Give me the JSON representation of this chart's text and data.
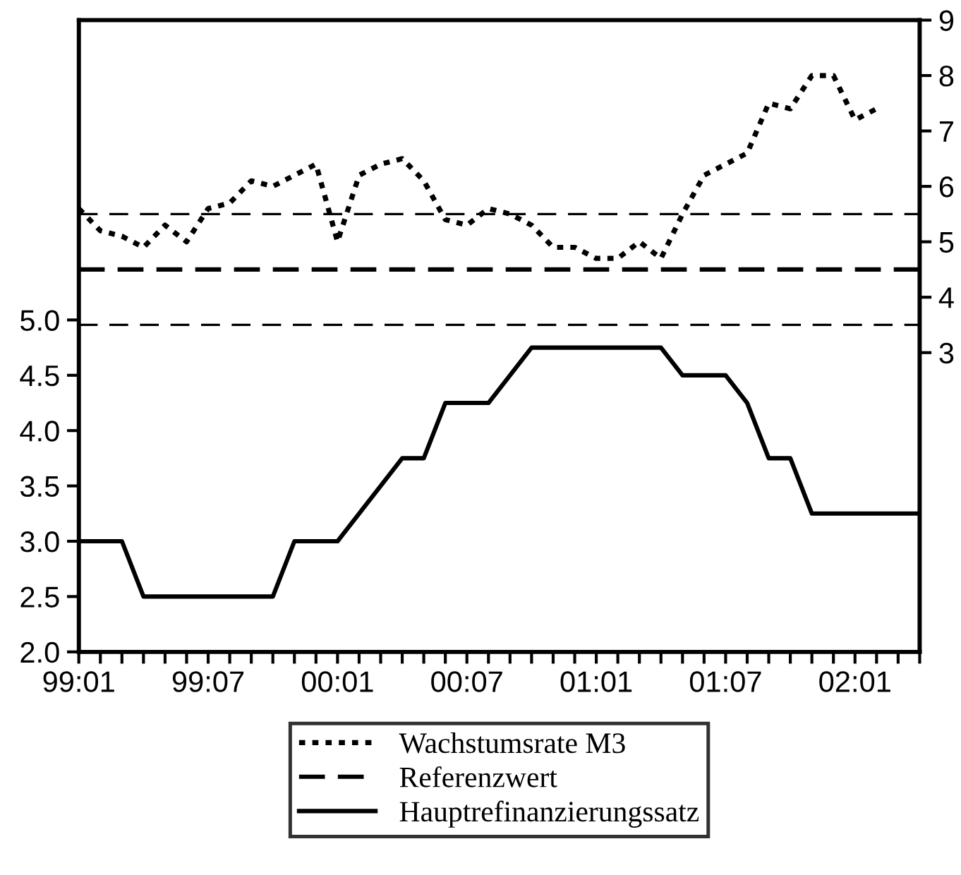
{
  "chart_data": {
    "type": "line",
    "categories": [
      "99:01",
      null,
      null,
      null,
      null,
      null,
      "99:07",
      null,
      null,
      null,
      null,
      null,
      "00:01",
      null,
      null,
      null,
      null,
      null,
      "00:07",
      null,
      null,
      null,
      null,
      null,
      "01:01",
      null,
      null,
      null,
      null,
      null,
      "01:07",
      null,
      null,
      null,
      null,
      null,
      "02:01",
      null,
      null,
      null
    ],
    "series": [
      {
        "name": "Wachstumsrate M3",
        "color": "#000000",
        "axis": "y2",
        "line_style": "dotted",
        "values": [
          5.6,
          5.2,
          5.1,
          4.9,
          5.3,
          5.0,
          5.6,
          5.7,
          6.1,
          6.0,
          6.2,
          6.4,
          5.0,
          6.2,
          6.4,
          6.5,
          6.1,
          5.4,
          5.3,
          5.6,
          5.5,
          5.3,
          4.9,
          4.9,
          4.7,
          4.7,
          5.0,
          4.7,
          5.5,
          6.2,
          6.4,
          6.6,
          7.5,
          7.4,
          8.0,
          8.0,
          7.2,
          7.4,
          null,
          null
        ]
      },
      {
        "name": "Referenzwert",
        "color": "#000000",
        "axis": "y2",
        "line_style": "dashed",
        "values": [
          4.5,
          4.5,
          4.5,
          4.5,
          4.5,
          4.5,
          4.5,
          4.5,
          4.5,
          4.5,
          4.5,
          4.5,
          4.5,
          4.5,
          4.5,
          4.5,
          4.5,
          4.5,
          4.5,
          4.5,
          4.5,
          4.5,
          4.5,
          4.5,
          4.5,
          4.5,
          4.5,
          4.5,
          4.5,
          4.5,
          4.5,
          4.5,
          4.5,
          4.5,
          4.5,
          4.5,
          4.5,
          4.5,
          4.5,
          4.5
        ]
      },
      {
        "name": "Hauptrefinanzierungssatz",
        "color": "#000000",
        "line_style": "solid",
        "values": [
          3.0,
          3.0,
          3.0,
          2.5,
          2.5,
          2.5,
          2.5,
          2.5,
          2.5,
          2.5,
          3.0,
          3.0,
          3.0,
          3.25,
          3.5,
          3.75,
          3.75,
          4.25,
          4.25,
          4.25,
          4.5,
          4.75,
          4.75,
          4.75,
          4.75,
          4.75,
          4.75,
          4.75,
          4.5,
          4.5,
          4.5,
          4.25,
          3.75,
          3.75,
          3.25,
          3.25,
          3.25,
          3.25,
          3.25,
          3.25
        ]
      }
    ],
    "ref_lines": [
      {
        "axis": "y2",
        "value": 5.5,
        "color": "#000000",
        "line_style": "dashed"
      },
      {
        "axis": "y2",
        "value": 3.5,
        "color": "#000000",
        "line_style": "dashed"
      }
    ],
    "ylim": [
      2.0,
      7.71
    ],
    "yticks": [
      {
        "value": 2.0,
        "label": "2.0"
      },
      {
        "value": 2.5,
        "label": "2.5"
      },
      {
        "value": 3.0,
        "label": "3.0"
      },
      {
        "value": 3.5,
        "label": "3.5"
      },
      {
        "value": 4.0,
        "label": "4.0"
      },
      {
        "value": 4.5,
        "label": "4.5"
      },
      {
        "value": 5.0,
        "label": "5.0"
      }
    ],
    "y2lim": [
      -2.4,
      9
    ],
    "y2ticks": [
      3,
      4,
      5,
      6,
      7,
      8,
      9
    ],
    "legend": "bottom",
    "grid": false,
    "marker": "none"
  }
}
